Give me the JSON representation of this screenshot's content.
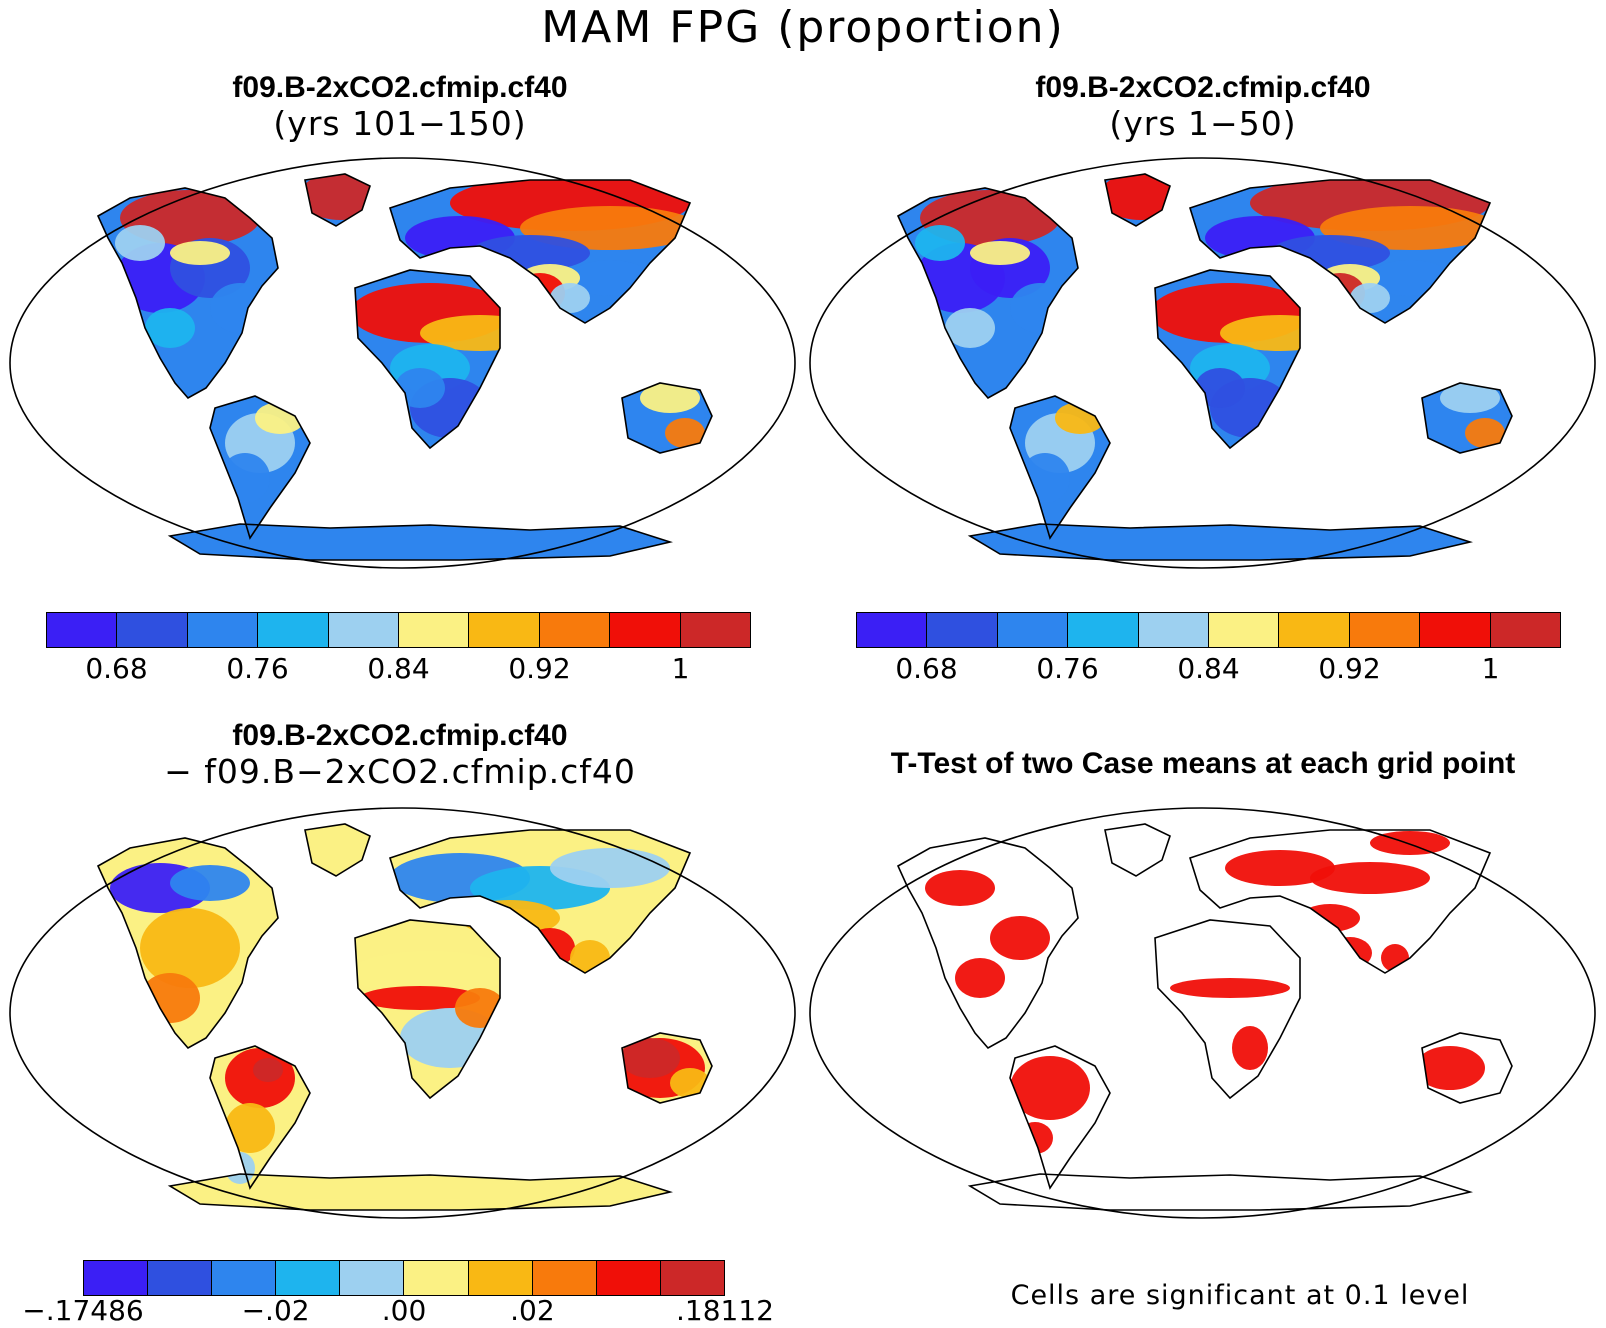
{
  "title": "MAM FPG (proportion)",
  "panels": {
    "case1": {
      "title_case": "f09.B-2xCO2.cfmip.cf40",
      "title_years": "(yrs 101−150)"
    },
    "case2": {
      "title_case": "f09.B-2xCO2.cfmip.cf40",
      "title_years": "(yrs 1−50)"
    },
    "diff": {
      "title_case": "f09.B-2xCO2.cfmip.cf40",
      "title_minus": "− f09.B−2xCO2.cfmip.cf40"
    },
    "ttest": {
      "title": "T-Test of two Case means at each grid point",
      "note": "Cells are significant at 0.1 level"
    }
  },
  "colorbars": {
    "abs": {
      "colors": [
        "#3b1ff5",
        "#2f50e0",
        "#2e85ee",
        "#1eb4ee",
        "#9dd0f0",
        "#fbf184",
        "#f9b814",
        "#f87a0c",
        "#f00f08",
        "#cc2828"
      ],
      "labels": [
        "0.68",
        "0.76",
        "0.84",
        "0.92",
        "1"
      ]
    },
    "diff": {
      "colors": [
        "#3b1ff5",
        "#2f50e0",
        "#2e85ee",
        "#1eb4ee",
        "#9dd0f0",
        "#fbf184",
        "#f9b814",
        "#f87a0c",
        "#f00f08",
        "#cc2828"
      ],
      "labels": [
        "−.17486",
        "−.02",
        ".00",
        ".02",
        ".18112"
      ]
    }
  },
  "map_colors": {
    "land_abs_base": "#2e85ee",
    "desert": "#f00f08",
    "arctic": "#cc2828",
    "diff_base": "#fbf184",
    "significant": "#f00f08",
    "coast": "#000000"
  }
}
